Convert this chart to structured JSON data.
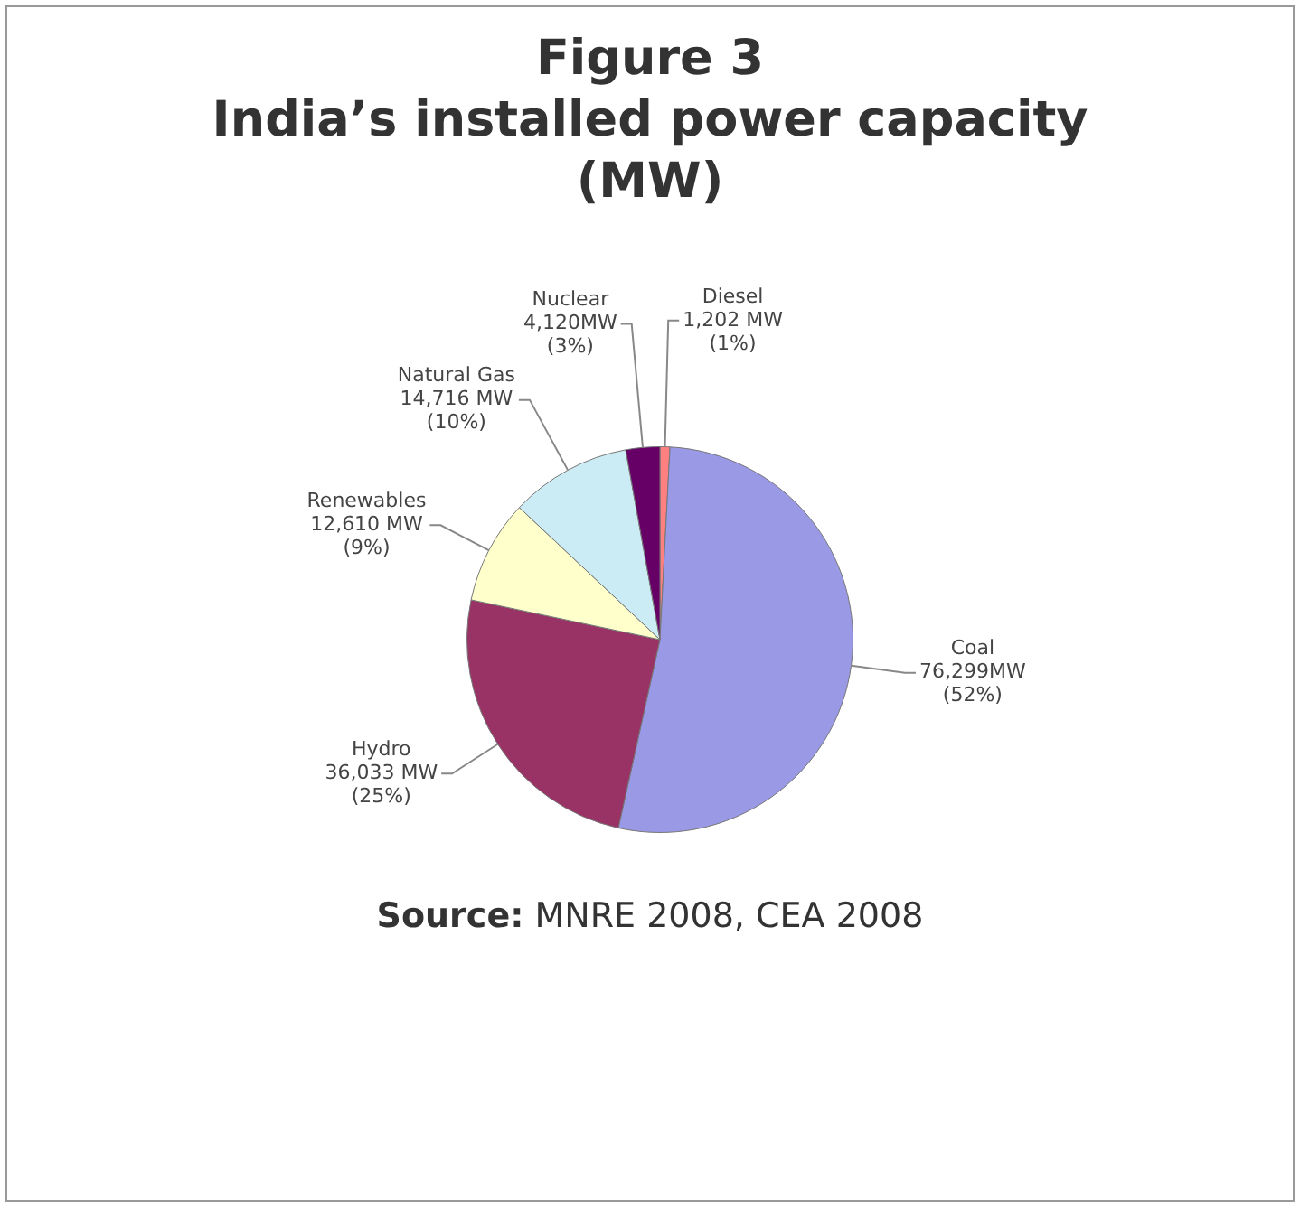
{
  "chart_data": {
    "type": "pie",
    "title": "Figure 3\nIndia’s installed power capacity\n(MW)",
    "categories": [
      "Diesel",
      "Coal",
      "Hydro",
      "Renewables",
      "Natural Gas",
      "Nuclear"
    ],
    "values": [
      1202,
      76299,
      36033,
      12610,
      14716,
      4120
    ],
    "colors": [
      "#ff8080",
      "#9999e6",
      "#993366",
      "#ffffcc",
      "#ccecf5",
      "#660066"
    ],
    "value_labels": [
      "1,202 MW\n(1%)",
      "76,299MW\n(52%)",
      "36,033 MW\n(25%)",
      "12,610 MW\n(9%)",
      "14,716 MW\n(10%)",
      "4,120MW\n(3%)"
    ],
    "legend": false,
    "annotations": [
      "Source: MNRE 2008, CEA 2008"
    ]
  }
}
